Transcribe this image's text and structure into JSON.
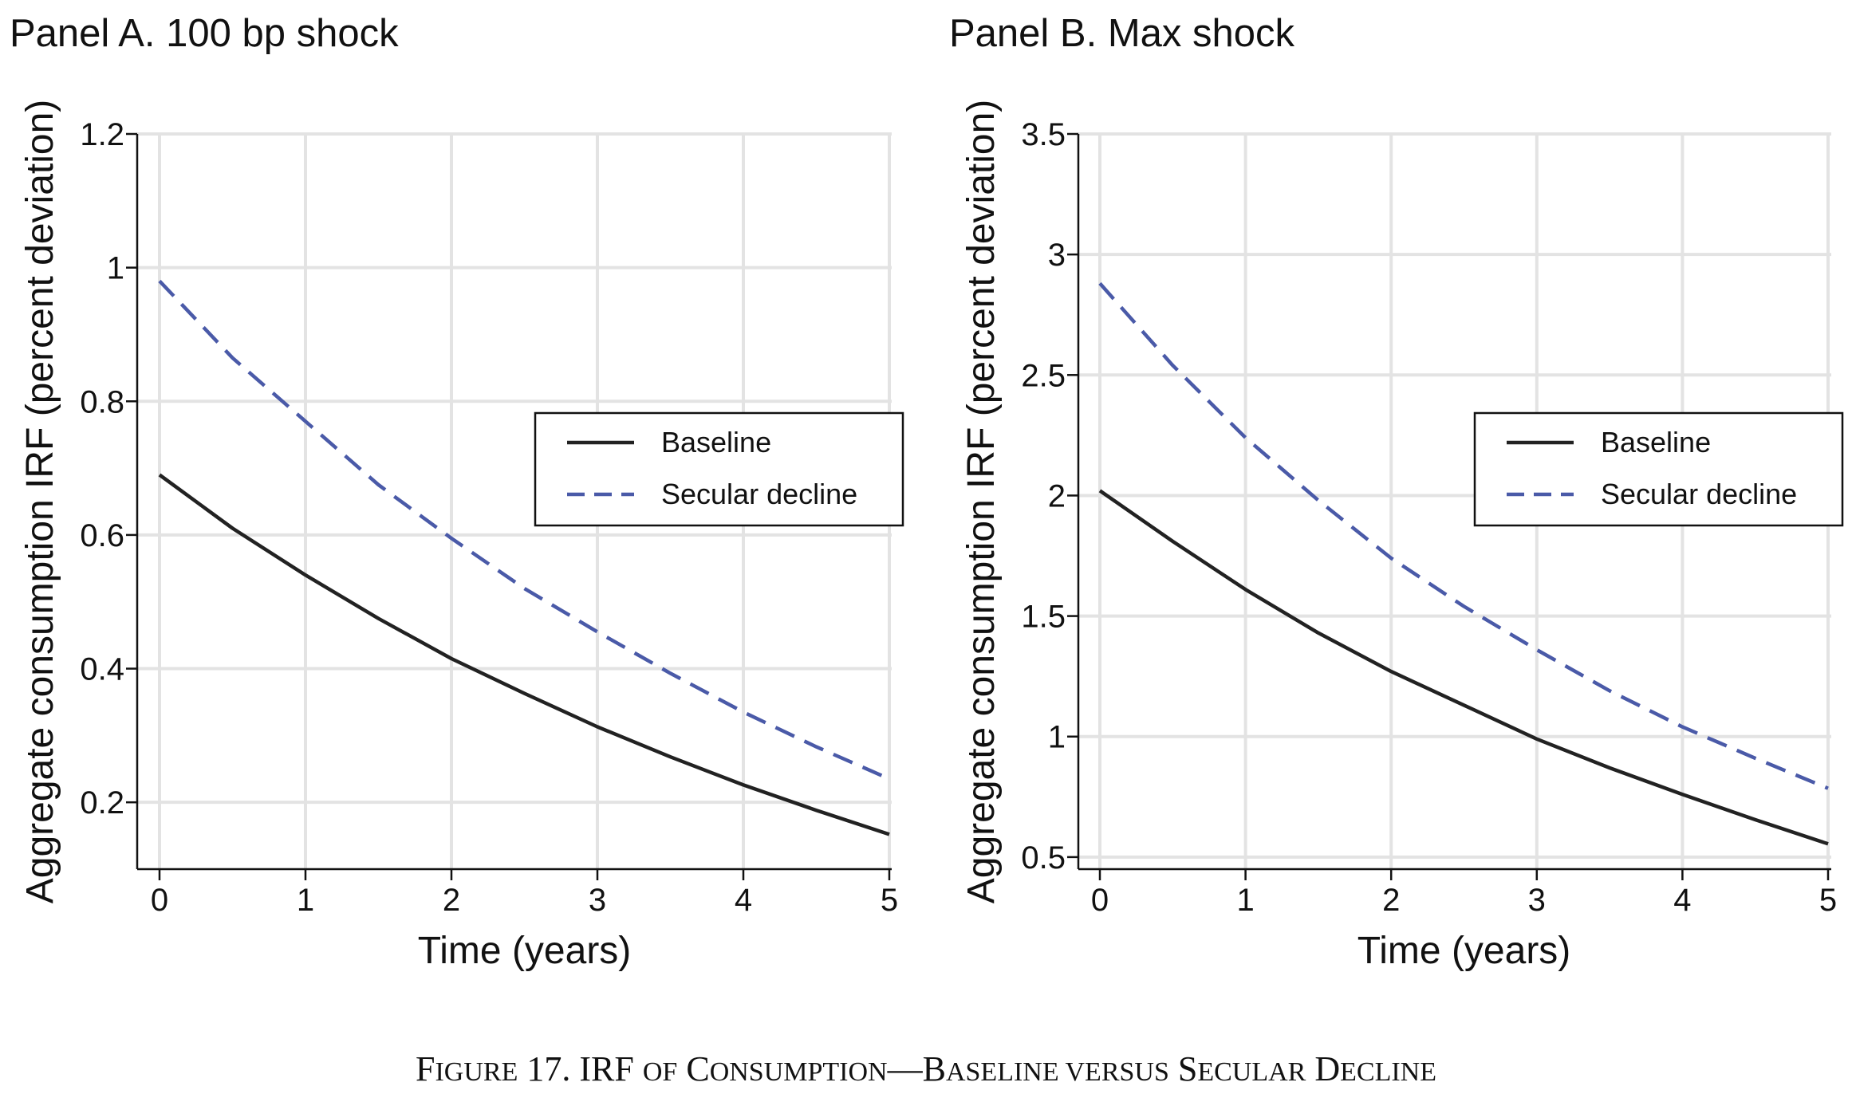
{
  "chart_data": [
    {
      "type": "line",
      "title": "Panel A. 100 bp shock",
      "xlabel": "Time (years)",
      "ylabel": "Aggregate consumption IRF (percent deviation)",
      "xlim": [
        0,
        5
      ],
      "ylim": [
        0.1,
        1.2
      ],
      "xticks": [
        0,
        1,
        2,
        3,
        4,
        5
      ],
      "yticks": [
        0.2,
        0.4,
        0.6,
        0.8,
        1,
        1.2
      ],
      "ytick_labels": [
        "0.2",
        "0.4",
        "0.6",
        "0.8",
        "1",
        "1.2"
      ],
      "grid": true,
      "legend_position": "right",
      "series": [
        {
          "name": "Baseline",
          "style": "solid",
          "color": "#222222",
          "x": [
            0,
            0.5,
            1,
            1.5,
            2,
            2.5,
            3,
            3.5,
            4,
            4.5,
            5
          ],
          "y": [
            0.69,
            0.61,
            0.54,
            0.475,
            0.415,
            0.363,
            0.313,
            0.268,
            0.226,
            0.188,
            0.152
          ]
        },
        {
          "name": "Secular decline",
          "style": "dashed",
          "color": "#4a5aa8",
          "x": [
            0,
            0.5,
            1,
            1.5,
            2,
            2.5,
            3,
            3.5,
            4,
            4.5,
            5
          ],
          "y": [
            0.98,
            0.865,
            0.77,
            0.675,
            0.595,
            0.52,
            0.455,
            0.393,
            0.335,
            0.283,
            0.235
          ]
        }
      ]
    },
    {
      "type": "line",
      "title": "Panel B. Max shock",
      "xlabel": "Time (years)",
      "ylabel": "Aggregate consumption IRF (percent deviation)",
      "xlim": [
        0,
        5
      ],
      "ylim": [
        0.45,
        3.5
      ],
      "xticks": [
        0,
        1,
        2,
        3,
        4,
        5
      ],
      "yticks": [
        0.5,
        1,
        1.5,
        2,
        2.5,
        3,
        3.5
      ],
      "ytick_labels": [
        "0.5",
        "1",
        "1.5",
        "2",
        "2.5",
        "3",
        "3.5"
      ],
      "grid": true,
      "legend_position": "right",
      "series": [
        {
          "name": "Baseline",
          "style": "solid",
          "color": "#222222",
          "x": [
            0,
            0.5,
            1,
            1.5,
            2,
            2.5,
            3,
            3.5,
            4,
            4.5,
            5
          ],
          "y": [
            2.02,
            1.81,
            1.61,
            1.43,
            1.27,
            1.13,
            0.99,
            0.87,
            0.76,
            0.655,
            0.555
          ]
        },
        {
          "name": "Secular decline",
          "style": "dashed",
          "color": "#4a5aa8",
          "x": [
            0,
            0.5,
            1,
            1.5,
            2,
            2.5,
            3,
            3.5,
            4,
            4.5,
            5
          ],
          "y": [
            2.88,
            2.54,
            2.24,
            1.98,
            1.74,
            1.54,
            1.36,
            1.19,
            1.04,
            0.91,
            0.785
          ]
        }
      ]
    }
  ],
  "caption": {
    "lead": "F",
    "parts": [
      {
        "text": "IGURE",
        "small": true
      },
      {
        "text": " 17. IRF ",
        "small": false
      },
      {
        "text": "OF",
        "small": true
      },
      {
        "text": " C",
        "small": false
      },
      {
        "text": "ONSUMPTION",
        "small": true
      },
      {
        "text": "—B",
        "small": false
      },
      {
        "text": "ASELINE VERSUS",
        "small": true
      },
      {
        "text": " S",
        "small": false
      },
      {
        "text": "ECULAR",
        "small": true
      },
      {
        "text": " D",
        "small": false
      },
      {
        "text": "ECLINE",
        "small": true
      }
    ]
  }
}
